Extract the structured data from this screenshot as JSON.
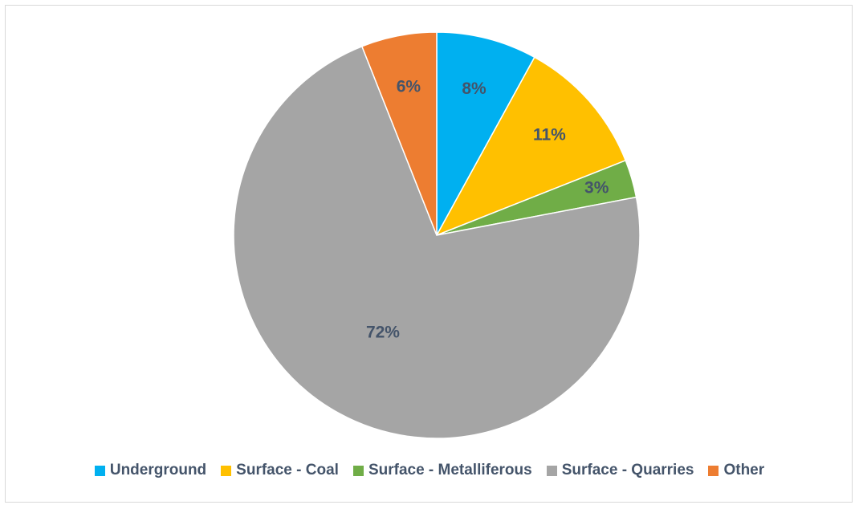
{
  "chart_data": {
    "type": "pie",
    "title": "",
    "categories": [
      "Underground",
      "Surface - Coal",
      "Surface - Metalliferous",
      "Surface - Quarries",
      "Other"
    ],
    "values": [
      8,
      11,
      3,
      72,
      6
    ],
    "data_labels": [
      "8%",
      "11%",
      "3%",
      "72%",
      "6%"
    ],
    "colors": [
      "#00b0f0",
      "#ffc000",
      "#70ad47",
      "#a5a5a5",
      "#ed7d31"
    ],
    "start_angle": "12 o'clock",
    "direction": "clockwise",
    "legend_position": "bottom"
  }
}
